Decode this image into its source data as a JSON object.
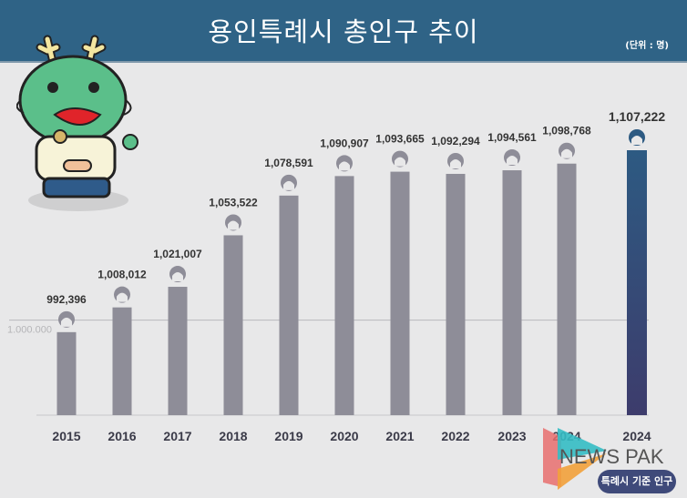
{
  "header": {
    "title": "용인특례시 총인구 추이",
    "unit": "(단위 : 명)"
  },
  "badge": "특례시 기준 인구",
  "watermark": "NEWS PAK",
  "chart_data": {
    "type": "bar",
    "title": "용인특례시 총인구 추이",
    "ylabel": "(단위 : 명)",
    "categories": [
      "2015",
      "2016",
      "2017",
      "2018",
      "2019",
      "2020",
      "2021",
      "2022",
      "2023",
      "2024",
      "2024"
    ],
    "values": [
      992396,
      1008012,
      1021007,
      1053522,
      1078591,
      1090907,
      1093665,
      1092294,
      1094561,
      1098768,
      1107222
    ],
    "value_labels": [
      "992,396",
      "1,008,012",
      "1,021,007",
      "1,053,522",
      "1,078,591",
      "1,090,907",
      "1,093,665",
      "1,092,294",
      "1,094,561",
      "1,098,768",
      "1,107,222"
    ],
    "reference_line": {
      "value": 1000000,
      "label": "1.000.000"
    },
    "ylim": [
      940000,
      1107222
    ],
    "highlight_index": 10,
    "colors": {
      "bar": "#8e8d98",
      "highlight_top": "#2d5a82",
      "highlight_bottom": "#3d3c6c",
      "label": "#333333"
    }
  }
}
